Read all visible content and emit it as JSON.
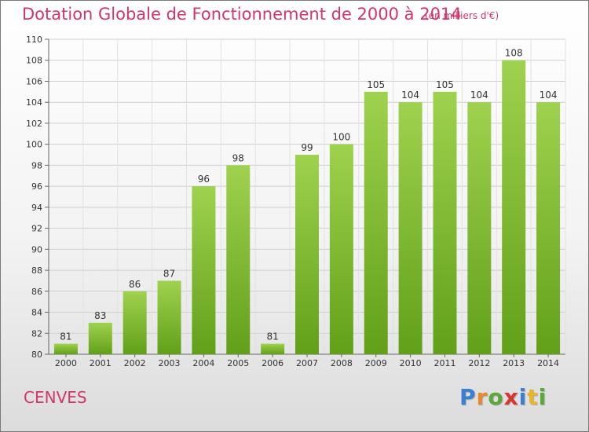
{
  "header": {
    "title": "Dotation Globale de Fonctionnement de 2000 à 2014",
    "subtitle": "(en milliers d'€)"
  },
  "footer": {
    "commune": "CENVES",
    "logo_letters": [
      "P",
      "r",
      "o",
      "x",
      "i",
      "t",
      "i"
    ],
    "logo_colors": [
      "#3a7fd0",
      "#e9892a",
      "#5aa83a",
      "#d8352e",
      "#3a7fd0",
      "#e9b52a",
      "#5aa83a"
    ]
  },
  "chart_data": {
    "type": "bar",
    "categories": [
      "2000",
      "2001",
      "2002",
      "2003",
      "2004",
      "2005",
      "2006",
      "2007",
      "2008",
      "2009",
      "2010",
      "2011",
      "2012",
      "2013",
      "2014"
    ],
    "values": [
      81,
      83,
      86,
      87,
      96,
      98,
      81,
      99,
      100,
      105,
      104,
      105,
      104,
      108,
      104
    ],
    "ylim": [
      80,
      110
    ],
    "yticks": [
      80,
      82,
      84,
      86,
      88,
      90,
      92,
      94,
      96,
      98,
      100,
      102,
      104,
      106,
      108,
      110
    ],
    "grid": true,
    "bar_color_top": "#9fd24e",
    "bar_color_bottom": "#62a019"
  }
}
